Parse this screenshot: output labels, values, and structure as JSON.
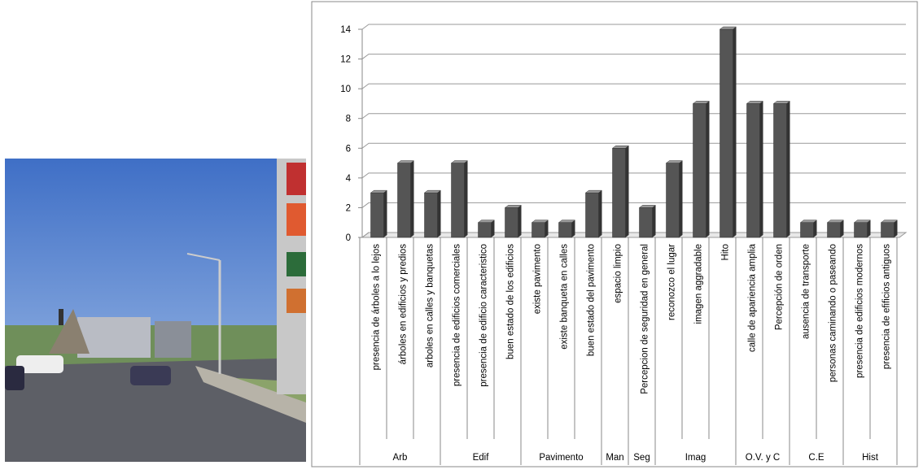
{
  "chart_data": {
    "type": "bar",
    "color": "#555555",
    "ylim": [
      0,
      14
    ],
    "yticks": [
      0,
      2,
      4,
      6,
      8,
      10,
      12,
      14
    ],
    "grid": true,
    "groups": [
      {
        "name": "Arb",
        "categories": [
          "presencia de árboles a lo lejos",
          "árboles en edificios y predios",
          "arboles en calles y banquetas"
        ],
        "values": [
          3,
          5,
          3
        ]
      },
      {
        "name": "Edif",
        "categories": [
          "presencia de edificios comerciales",
          "presencia de edificio caracteristico",
          "buen estado de los edificios"
        ],
        "values": [
          5,
          1,
          2
        ]
      },
      {
        "name": "Pavimento",
        "categories": [
          "existe pavimento",
          "existe banqueta en calles",
          "buen estado del pavimento"
        ],
        "values": [
          1,
          1,
          3
        ]
      },
      {
        "name": "Man",
        "categories": [
          "espacio limpio"
        ],
        "values": [
          6
        ]
      },
      {
        "name": "Seg",
        "categories": [
          "Percepcion de seguridad en general"
        ],
        "values": [
          2
        ]
      },
      {
        "name": "Imag",
        "categories": [
          "reconozco el lugar",
          "imagen aggradable",
          "Hito"
        ],
        "values": [
          5,
          9,
          14
        ]
      },
      {
        "name": "O.V. y C",
        "categories": [
          "calle de apariencia amplia",
          "Percepción de orden"
        ],
        "values": [
          9,
          9
        ]
      },
      {
        "name": "C.E",
        "categories": [
          "ausencia de transporte",
          "personas caminando o paseando"
        ],
        "values": [
          1,
          1
        ]
      },
      {
        "name": "Hist",
        "categories": [
          "presencia de edificios modernos",
          "presencia de efificios antiguos"
        ],
        "values": [
          1,
          1
        ]
      }
    ]
  }
}
